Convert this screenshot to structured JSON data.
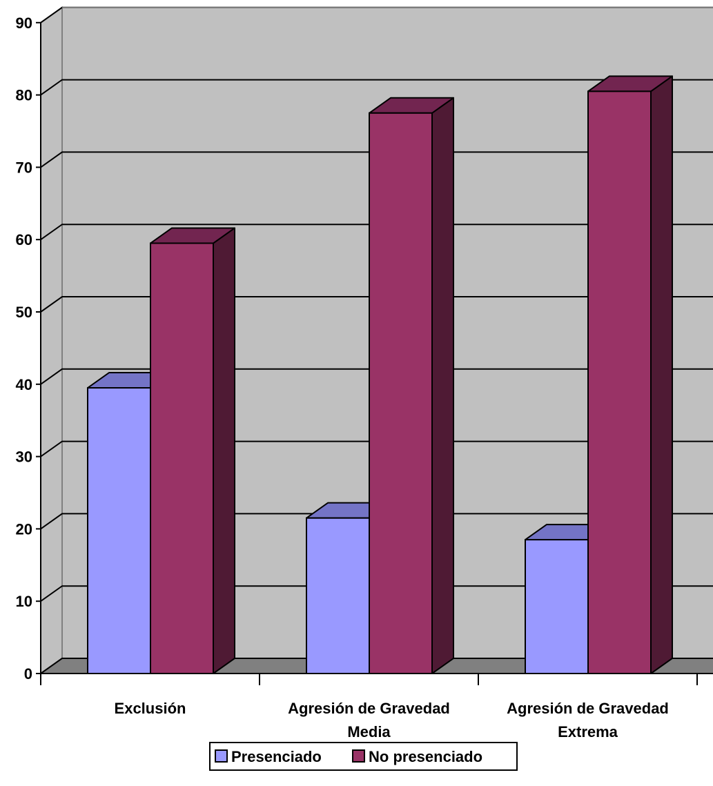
{
  "chart_data": {
    "type": "bar",
    "style": "3d-clustered-column",
    "categories": [
      [
        "Exclusión"
      ],
      [
        "Agresión de Gravedad",
        "Media"
      ],
      [
        "Agresión de Gravedad",
        "Extrema"
      ]
    ],
    "series": [
      {
        "name": "Presenciado",
        "values": [
          39.5,
          21.5,
          18.5
        ]
      },
      {
        "name": "No presenciado",
        "values": [
          59.5,
          77.5,
          80.5
        ]
      }
    ],
    "ylim": [
      0,
      90
    ],
    "yticks": [
      0,
      10,
      20,
      30,
      40,
      50,
      60,
      70,
      80,
      90
    ],
    "grid": true,
    "legend_position": "bottom",
    "colors": {
      "wall": "#c0c0c0",
      "floor": "#808080",
      "presenciado_front": "#9999ff",
      "presenciado_top": "#7474c6",
      "no_presenciado_front": "#993366",
      "no_presenciado_top": "#722550",
      "no_presenciado_side": "#4f1a34",
      "grid": "#000000"
    }
  }
}
